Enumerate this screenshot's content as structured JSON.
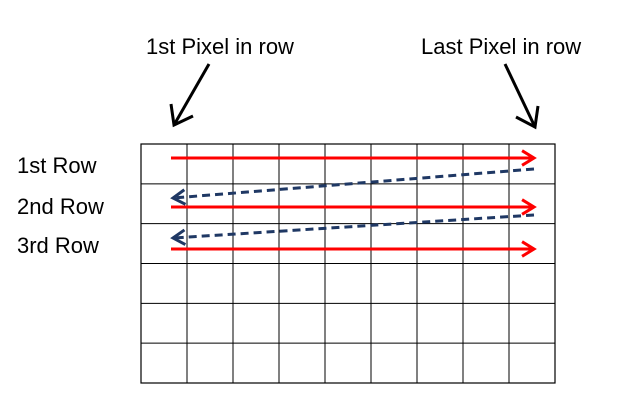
{
  "labels": {
    "first_pixel": "1st Pixel in row",
    "last_pixel": "Last Pixel in row",
    "rows": [
      "1st Row",
      "2nd Row",
      "3rd Row"
    ]
  },
  "grid": {
    "columns": 9,
    "rows": 6,
    "line_color": "#000000"
  },
  "scan": {
    "rows_traced": 3,
    "row_arrow_color": "#ff0000",
    "retrace_arrow_color": "#1f3864",
    "retrace_style": "dashed"
  },
  "pointers": {
    "color": "#000000"
  }
}
